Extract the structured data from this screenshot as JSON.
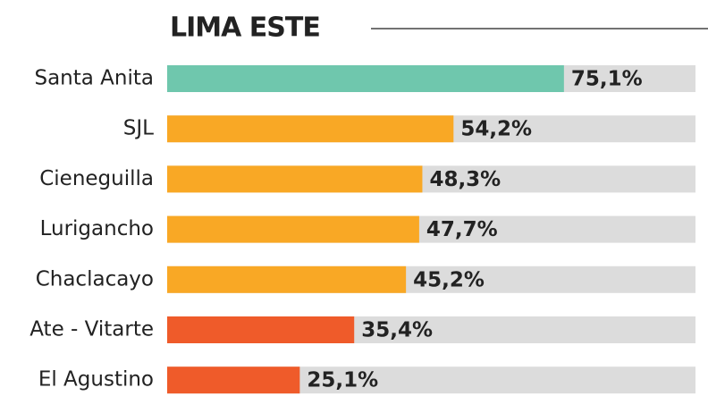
{
  "chart_data": {
    "type": "hbar",
    "title": "LIMA ESTE",
    "categories": [
      "Santa Anita",
      "SJL",
      "Cieneguilla",
      "Lurigancho",
      "Chaclacayo",
      "Ate - Vitarte",
      "El Agustino"
    ],
    "values": [
      75.1,
      54.2,
      48.3,
      47.7,
      45.2,
      35.4,
      25.1
    ],
    "value_labels": [
      "75,1%",
      "54,2%",
      "48,3%",
      "47,7%",
      "45,2%",
      "35,4%",
      "25,1%"
    ],
    "colors": [
      "#6fc7ad",
      "#f9a825",
      "#f9a825",
      "#f9a825",
      "#f9a825",
      "#ef5b2a",
      "#ef5b2a"
    ],
    "track_color": "#dcdcdc",
    "xlim": [
      0,
      100
    ]
  }
}
